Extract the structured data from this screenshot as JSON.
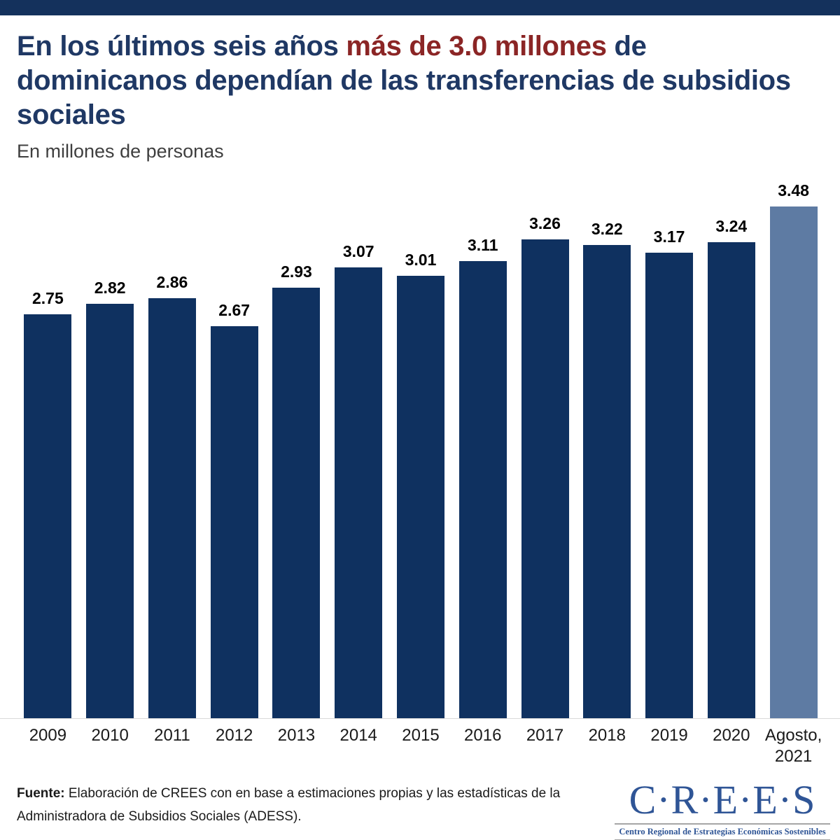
{
  "header": {
    "title": {
      "part1": "En los últimos seis años ",
      "highlight": "más de 3.0 millones",
      "part2": " de dominicanos dependían de las transferencias de subsidios sociales"
    },
    "subtitle": "En millones de personas"
  },
  "chart_data": {
    "type": "bar",
    "title": "En los últimos seis años más de 3.0 millones de dominicanos dependían de las transferencias de subsidios sociales",
    "subtitle": "En millones de personas",
    "unit": "millones de personas",
    "categories": [
      "2009",
      "2010",
      "2011",
      "2012",
      "2013",
      "2014",
      "2015",
      "2016",
      "2017",
      "2018",
      "2019",
      "2020",
      "Agosto, 2021"
    ],
    "values": [
      2.75,
      2.82,
      2.86,
      2.67,
      2.93,
      3.07,
      3.01,
      3.11,
      3.26,
      3.22,
      3.17,
      3.24,
      3.48
    ],
    "value_labels": [
      "2.75",
      "2.82",
      "2.86",
      "2.67",
      "2.93",
      "3.07",
      "3.01",
      "3.11",
      "3.26",
      "3.22",
      "3.17",
      "3.24",
      "3.48"
    ],
    "xlabel": "",
    "ylabel": "",
    "ylim": [
      0,
      3.48
    ],
    "grid": false,
    "legend": false,
    "bar_color": "#0F3160",
    "highlight_last_color": "#5E7BA3"
  },
  "footer": {
    "source_label": "Fuente:",
    "source_text": " Elaboración de CREES con en base a estimaciones propias y las estadísticas de la Administradora de Subsidios Sociales (ADESS).",
    "logo": {
      "name": "C·R·E·E·S",
      "tagline": "Centro Regional de Estrategias Económicas Sostenibles"
    }
  },
  "colors": {
    "top_band": "#14315C",
    "title_navy": "#1F3864",
    "title_red": "#8B2525",
    "subtitle_grey": "#3F3F3F",
    "axis_line": "#D9D9D9",
    "logo_blue": "#2F5596"
  }
}
